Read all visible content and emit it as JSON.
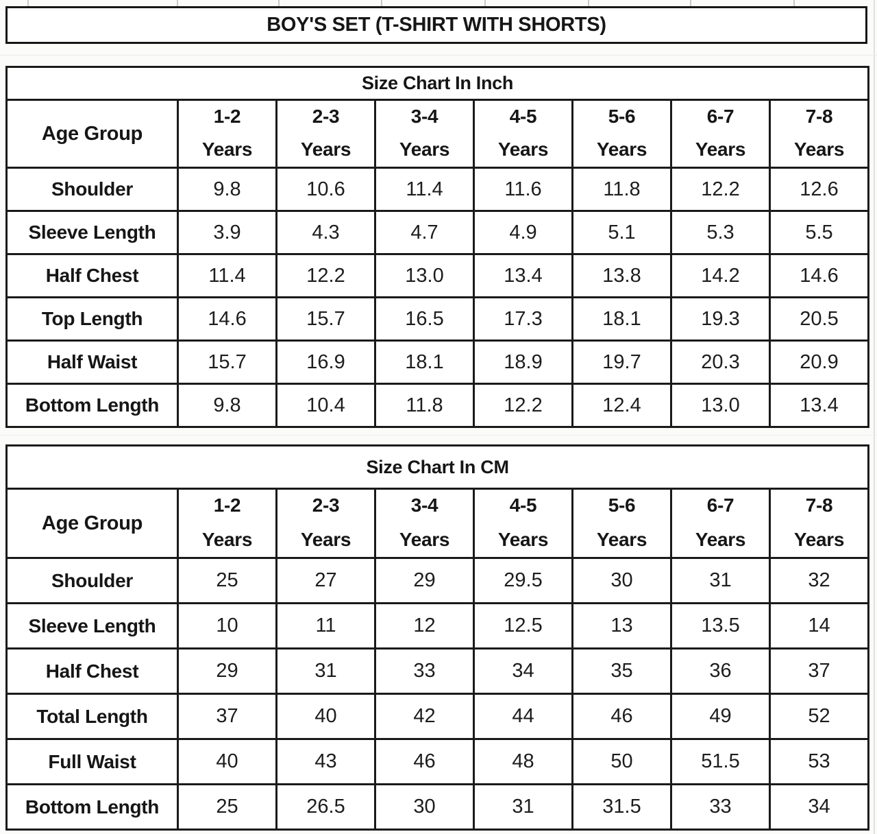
{
  "page_title": "BOY'S SET (T-SHIRT WITH SHORTS)",
  "tables": [
    {
      "title": "Size Chart In Inch",
      "corner_label": "Age Group",
      "age_unit": "Years",
      "age_groups": [
        "1-2",
        "2-3",
        "3-4",
        "4-5",
        "5-6",
        "6-7",
        "7-8"
      ],
      "rows": [
        {
          "label": "Shoulder",
          "values": [
            "9.8",
            "10.6",
            "11.4",
            "11.6",
            "11.8",
            "12.2",
            "12.6"
          ]
        },
        {
          "label": "Sleeve Length",
          "values": [
            "3.9",
            "4.3",
            "4.7",
            "4.9",
            "5.1",
            "5.3",
            "5.5"
          ]
        },
        {
          "label": "Half Chest",
          "values": [
            "11.4",
            "12.2",
            "13.0",
            "13.4",
            "13.8",
            "14.2",
            "14.6"
          ]
        },
        {
          "label": "Top Length",
          "values": [
            "14.6",
            "15.7",
            "16.5",
            "17.3",
            "18.1",
            "19.3",
            "20.5"
          ]
        },
        {
          "label": "Half Waist",
          "values": [
            "15.7",
            "16.9",
            "18.1",
            "18.9",
            "19.7",
            "20.3",
            "20.9"
          ]
        },
        {
          "label": "Bottom Length",
          "values": [
            "9.8",
            "10.4",
            "11.8",
            "12.2",
            "12.4",
            "13.0",
            "13.4"
          ]
        }
      ]
    },
    {
      "title": "Size Chart In CM",
      "corner_label": "Age Group",
      "age_unit": "Years",
      "age_groups": [
        "1-2",
        "2-3",
        "3-4",
        "4-5",
        "5-6",
        "6-7",
        "7-8"
      ],
      "rows": [
        {
          "label": "Shoulder",
          "values": [
            "25",
            "27",
            "29",
            "29.5",
            "30",
            "31",
            "32"
          ]
        },
        {
          "label": "Sleeve Length",
          "values": [
            "10",
            "11",
            "12",
            "12.5",
            "13",
            "13.5",
            "14"
          ]
        },
        {
          "label": "Half Chest",
          "values": [
            "29",
            "31",
            "33",
            "34",
            "35",
            "36",
            "37"
          ]
        },
        {
          "label": "Total Length",
          "values": [
            "37",
            "40",
            "42",
            "44",
            "46",
            "49",
            "52"
          ]
        },
        {
          "label": "Full Waist",
          "values": [
            "40",
            "43",
            "46",
            "48",
            "50",
            "51.5",
            "53"
          ]
        },
        {
          "label": "Bottom Length",
          "values": [
            "25",
            "26.5",
            "30",
            "31",
            "31.5",
            "33",
            "34"
          ]
        }
      ]
    }
  ],
  "chart_data": [
    {
      "type": "table",
      "title": "Size Chart In Inch",
      "categories": [
        "1-2 Years",
        "2-3 Years",
        "3-4 Years",
        "4-5 Years",
        "5-6 Years",
        "6-7 Years",
        "7-8 Years"
      ],
      "series": [
        {
          "name": "Shoulder",
          "values": [
            9.8,
            10.6,
            11.4,
            11.6,
            11.8,
            12.2,
            12.6
          ]
        },
        {
          "name": "Sleeve Length",
          "values": [
            3.9,
            4.3,
            4.7,
            4.9,
            5.1,
            5.3,
            5.5
          ]
        },
        {
          "name": "Half Chest",
          "values": [
            11.4,
            12.2,
            13.0,
            13.4,
            13.8,
            14.2,
            14.6
          ]
        },
        {
          "name": "Top Length",
          "values": [
            14.6,
            15.7,
            16.5,
            17.3,
            18.1,
            19.3,
            20.5
          ]
        },
        {
          "name": "Half Waist",
          "values": [
            15.7,
            16.9,
            18.1,
            18.9,
            19.7,
            20.3,
            20.9
          ]
        },
        {
          "name": "Bottom Length",
          "values": [
            9.8,
            10.4,
            11.8,
            12.2,
            12.4,
            13.0,
            13.4
          ]
        }
      ]
    },
    {
      "type": "table",
      "title": "Size Chart In CM",
      "categories": [
        "1-2 Years",
        "2-3 Years",
        "3-4 Years",
        "4-5 Years",
        "5-6 Years",
        "6-7 Years",
        "7-8 Years"
      ],
      "series": [
        {
          "name": "Shoulder",
          "values": [
            25,
            27,
            29,
            29.5,
            30,
            31,
            32
          ]
        },
        {
          "name": "Sleeve Length",
          "values": [
            10,
            11,
            12,
            12.5,
            13,
            13.5,
            14
          ]
        },
        {
          "name": "Half Chest",
          "values": [
            29,
            31,
            33,
            34,
            35,
            36,
            37
          ]
        },
        {
          "name": "Total Length",
          "values": [
            37,
            40,
            42,
            44,
            46,
            49,
            52
          ]
        },
        {
          "name": "Full Waist",
          "values": [
            40,
            43,
            46,
            48,
            50,
            51.5,
            53
          ]
        },
        {
          "name": "Bottom Length",
          "values": [
            25,
            26.5,
            30,
            31,
            31.5,
            33,
            34
          ]
        }
      ]
    }
  ]
}
